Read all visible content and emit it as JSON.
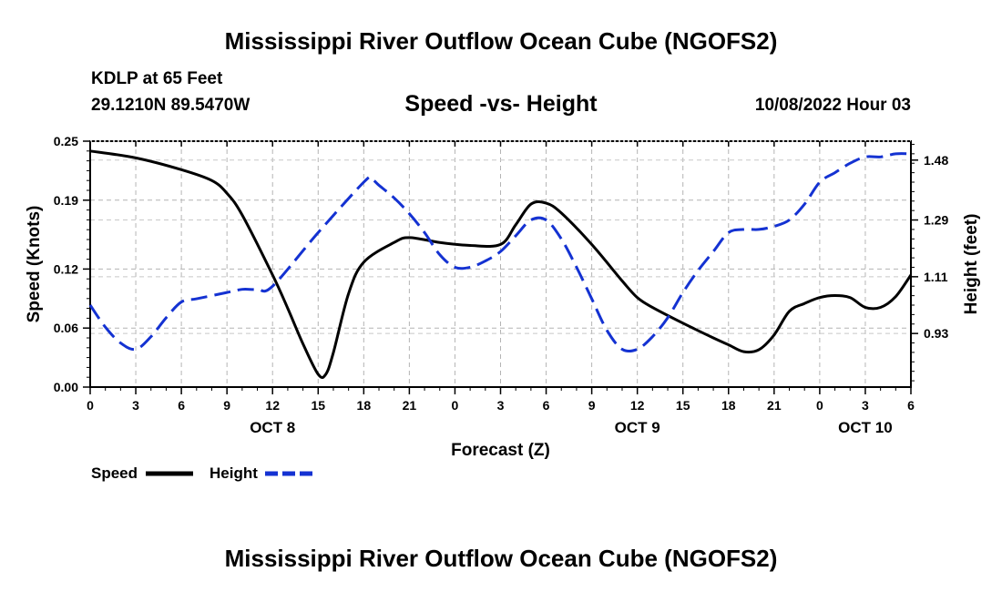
{
  "header": {
    "title": "Mississippi River Outflow Ocean Cube (NGOFS2)",
    "station": "KDLP at 65 Feet",
    "coords": "29.1210N  89.5470W",
    "subtitle": "Speed -vs- Height",
    "timestamp": "10/08/2022 Hour 03"
  },
  "footer": {
    "title": "Mississippi River Outflow Ocean Cube (NGOFS2)"
  },
  "chart_data": {
    "type": "line",
    "title": "Speed -vs- Height",
    "xlabel": "Forecast (Z)",
    "ylabel": "Speed (Knots)",
    "y2label": "Height (feet)",
    "x_range": [
      0,
      54
    ],
    "x_tick_labels": [
      "0",
      "3",
      "6",
      "9",
      "12",
      "15",
      "18",
      "21",
      "0",
      "3",
      "6",
      "9",
      "12",
      "15",
      "18",
      "21",
      "0",
      "3",
      "6"
    ],
    "day_labels": [
      {
        "x": 12,
        "label": "OCT 8"
      },
      {
        "x": 36,
        "label": "OCT 9"
      },
      {
        "x": 51,
        "label": "OCT 10"
      }
    ],
    "ylim": [
      0,
      0.25
    ],
    "y_ticks": [
      0.0,
      0.06,
      0.12,
      0.19,
      0.25
    ],
    "y_tick_labels": [
      "0.00",
      "0.06",
      "0.12",
      "0.19",
      "0.25"
    ],
    "y2lim": [
      0.76,
      1.54
    ],
    "y2_ticks": [
      0.93,
      1.11,
      1.29,
      1.48
    ],
    "y2_tick_labels": [
      "0.93",
      "1.11",
      "1.29",
      "1.48"
    ],
    "grid": true,
    "series": [
      {
        "name": "Speed",
        "axis": "left",
        "color": "#000000",
        "style": "solid",
        "x": [
          0,
          3,
          6,
          8,
          9,
          10,
          12,
          13,
          14,
          15,
          15.5,
          16,
          17,
          18,
          20,
          21,
          23,
          25,
          27,
          28,
          29,
          30,
          31,
          33,
          35,
          36,
          37,
          39,
          41,
          42,
          43,
          44,
          45,
          46,
          47,
          48,
          49,
          50,
          51,
          52,
          53,
          54
        ],
        "values": [
          0.24,
          0.233,
          0.221,
          0.21,
          0.197,
          0.175,
          0.114,
          0.08,
          0.044,
          0.013,
          0.013,
          0.035,
          0.095,
          0.127,
          0.147,
          0.152,
          0.147,
          0.144,
          0.145,
          0.165,
          0.186,
          0.187,
          0.177,
          0.145,
          0.108,
          0.091,
          0.081,
          0.065,
          0.05,
          0.043,
          0.036,
          0.038,
          0.053,
          0.077,
          0.085,
          0.091,
          0.093,
          0.091,
          0.081,
          0.081,
          0.092,
          0.114
        ]
      },
      {
        "name": "Height",
        "axis": "right",
        "color": "#1432d2",
        "style": "dashed",
        "x": [
          0,
          1,
          2,
          3,
          4,
          5,
          6,
          7,
          9,
          10,
          11,
          12,
          15,
          18,
          18.5,
          19,
          20,
          21,
          22,
          23,
          24,
          25,
          26,
          27,
          28,
          29,
          30,
          31,
          32,
          33,
          34,
          35,
          36,
          37,
          38,
          39,
          40,
          41,
          42,
          43,
          44,
          45,
          46,
          47,
          48,
          49,
          50,
          51,
          52,
          53,
          54
        ],
        "values": [
          1.02,
          0.95,
          0.9,
          0.88,
          0.92,
          0.98,
          1.03,
          1.04,
          1.06,
          1.07,
          1.07,
          1.08,
          1.25,
          1.41,
          1.42,
          1.4,
          1.36,
          1.31,
          1.25,
          1.18,
          1.14,
          1.14,
          1.16,
          1.19,
          1.24,
          1.29,
          1.29,
          1.23,
          1.14,
          1.04,
          0.94,
          0.88,
          0.88,
          0.92,
          0.98,
          1.06,
          1.13,
          1.19,
          1.25,
          1.26,
          1.26,
          1.27,
          1.29,
          1.34,
          1.41,
          1.44,
          1.47,
          1.49,
          1.49,
          1.5,
          1.5
        ]
      }
    ],
    "legend": [
      {
        "label": "Speed",
        "color": "#000000",
        "style": "solid"
      },
      {
        "label": "Height",
        "color": "#1432d2",
        "style": "dashed"
      }
    ]
  }
}
